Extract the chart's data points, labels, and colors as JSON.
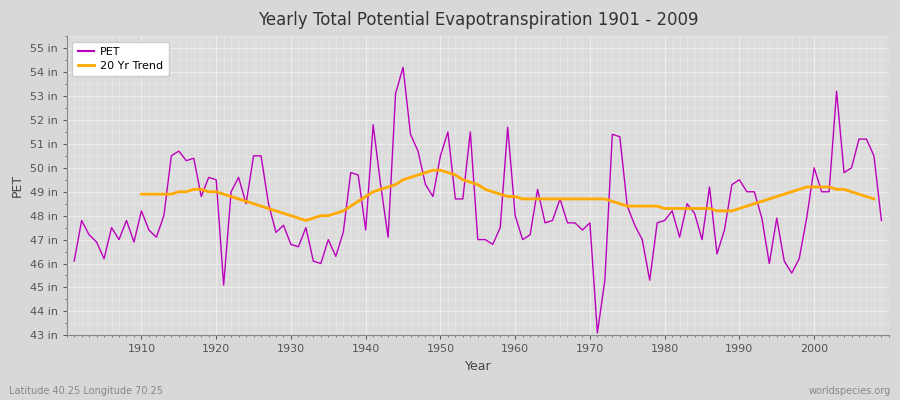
{
  "title": "Yearly Total Potential Evapotranspiration 1901 - 2009",
  "xlabel": "Year",
  "ylabel": "PET",
  "pet_color": "#bb00bb",
  "trend_color": "#ffaa00",
  "fig_bg_color": "#d8d8d8",
  "plot_bg_color": "#dcdcdc",
  "grid_color": "#f0f0f0",
  "ylim": [
    43,
    55.5
  ],
  "yticks": [
    43,
    44,
    45,
    46,
    47,
    48,
    49,
    50,
    51,
    52,
    53,
    54,
    55
  ],
  "xlim": [
    1900,
    2010
  ],
  "xticks": [
    1910,
    1920,
    1930,
    1940,
    1950,
    1960,
    1970,
    1980,
    1990,
    2000
  ],
  "footnote_left": "Latitude 40.25 Longitude 70.25",
  "footnote_right": "worldspecies.org",
  "years": [
    1901,
    1902,
    1903,
    1904,
    1905,
    1906,
    1907,
    1908,
    1909,
    1910,
    1911,
    1912,
    1913,
    1914,
    1915,
    1916,
    1917,
    1918,
    1919,
    1920,
    1921,
    1922,
    1923,
    1924,
    1925,
    1926,
    1927,
    1928,
    1929,
    1930,
    1931,
    1932,
    1933,
    1934,
    1935,
    1936,
    1937,
    1938,
    1939,
    1940,
    1941,
    1942,
    1943,
    1944,
    1945,
    1946,
    1947,
    1948,
    1949,
    1950,
    1951,
    1952,
    1953,
    1954,
    1955,
    1956,
    1957,
    1958,
    1959,
    1960,
    1961,
    1962,
    1963,
    1964,
    1965,
    1966,
    1967,
    1968,
    1969,
    1970,
    1971,
    1972,
    1973,
    1974,
    1975,
    1976,
    1977,
    1978,
    1979,
    1980,
    1981,
    1982,
    1983,
    1984,
    1985,
    1986,
    1987,
    1988,
    1989,
    1990,
    1991,
    1992,
    1993,
    1994,
    1995,
    1996,
    1997,
    1998,
    1999,
    2000,
    2001,
    2002,
    2003,
    2004,
    2005,
    2006,
    2007,
    2008,
    2009
  ],
  "pet": [
    46.1,
    47.8,
    47.2,
    46.9,
    46.2,
    47.5,
    47.0,
    47.8,
    46.9,
    48.2,
    47.4,
    47.1,
    48.0,
    50.5,
    50.7,
    50.3,
    50.4,
    48.8,
    49.6,
    49.5,
    45.1,
    49.0,
    49.6,
    48.5,
    50.5,
    50.5,
    48.5,
    47.3,
    47.6,
    46.8,
    46.7,
    47.5,
    46.1,
    46.0,
    47.0,
    46.3,
    47.3,
    49.8,
    49.7,
    47.4,
    51.8,
    49.3,
    47.1,
    53.1,
    54.2,
    51.4,
    50.7,
    49.3,
    48.8,
    50.5,
    51.5,
    48.7,
    48.7,
    51.5,
    47.0,
    47.0,
    46.8,
    47.5,
    51.7,
    48.0,
    47.0,
    47.2,
    49.1,
    47.7,
    47.8,
    48.7,
    47.7,
    47.7,
    47.4,
    47.7,
    43.1,
    45.3,
    51.4,
    51.3,
    48.4,
    47.6,
    47.0,
    45.3,
    47.7,
    47.8,
    48.2,
    47.1,
    48.5,
    48.1,
    47.0,
    49.2,
    46.4,
    47.4,
    49.3,
    49.5,
    49.0,
    49.0,
    47.9,
    46.0,
    47.9,
    46.1,
    45.6,
    46.2,
    47.9,
    50.0,
    49.0,
    49.0,
    53.2,
    49.8,
    50.0,
    51.2,
    51.2,
    50.5,
    47.8
  ],
  "trend": [
    null,
    null,
    null,
    null,
    null,
    null,
    null,
    null,
    null,
    48.9,
    48.9,
    48.9,
    48.9,
    48.9,
    49.0,
    49.0,
    49.1,
    49.1,
    49.0,
    49.0,
    48.9,
    48.8,
    48.7,
    48.6,
    48.5,
    48.4,
    48.3,
    48.2,
    48.1,
    48.0,
    47.9,
    47.8,
    47.9,
    48.0,
    48.0,
    48.1,
    48.2,
    48.4,
    48.6,
    48.8,
    49.0,
    49.1,
    49.2,
    49.3,
    49.5,
    49.6,
    49.7,
    49.8,
    49.9,
    49.9,
    49.8,
    49.7,
    49.5,
    49.4,
    49.3,
    49.1,
    49.0,
    48.9,
    48.8,
    48.8,
    48.7,
    48.7,
    48.7,
    48.7,
    48.7,
    48.7,
    48.7,
    48.7,
    48.7,
    48.7,
    48.7,
    48.7,
    48.6,
    48.5,
    48.4,
    48.4,
    48.4,
    48.4,
    48.4,
    48.3,
    48.3,
    48.3,
    48.3,
    48.3,
    48.3,
    48.3,
    48.2,
    48.2,
    48.2,
    48.3,
    48.4,
    48.5,
    48.6,
    48.7,
    48.8,
    48.9,
    49.0,
    49.1,
    49.2,
    49.2,
    49.2,
    49.2,
    49.1,
    49.1,
    49.0,
    48.9,
    48.8,
    48.7
  ]
}
